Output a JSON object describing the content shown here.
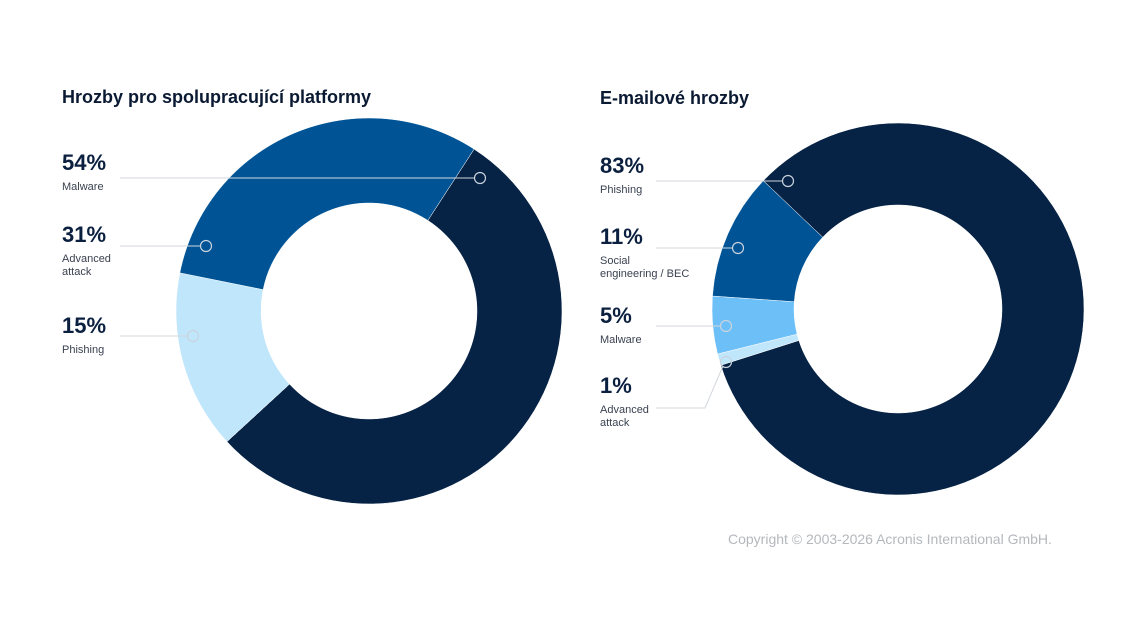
{
  "chart_data": [
    {
      "type": "pie",
      "title": "Hrozby pro spolupracující platformy",
      "start_angle_deg": 33,
      "slices": [
        {
          "label": [
            "Malware"
          ],
          "value": 54,
          "display": "54%",
          "color": "#062244"
        },
        {
          "label": [
            "Phishing"
          ],
          "value": 15,
          "display": "15%",
          "color": "#bfe6fb"
        },
        {
          "label": [
            "Advanced",
            "attack"
          ],
          "value": 31,
          "display": "31%",
          "color": "#005496"
        }
      ],
      "legend_order": [
        0,
        2,
        1
      ]
    },
    {
      "type": "pie",
      "title": "E-mailové hrozby",
      "start_angle_deg": 313.6,
      "slices": [
        {
          "label": [
            "Phishing"
          ],
          "value": 83,
          "display": "83%",
          "color": "#062244"
        },
        {
          "label": [
            "Advanced",
            "attack"
          ],
          "value": 1,
          "display": "1%",
          "color": "#bfe6fb"
        },
        {
          "label": [
            "Malware"
          ],
          "value": 5,
          "display": "5%",
          "color": "#6dbff8"
        },
        {
          "label": [
            "Social",
            "engineering / BEC"
          ],
          "value": 11,
          "display": "11%",
          "color": "#005496"
        }
      ],
      "legend_order": [
        0,
        3,
        2,
        1
      ]
    }
  ],
  "footer": {
    "copyright": "Copyright © 2003-2026 Acronis International GmbH."
  }
}
